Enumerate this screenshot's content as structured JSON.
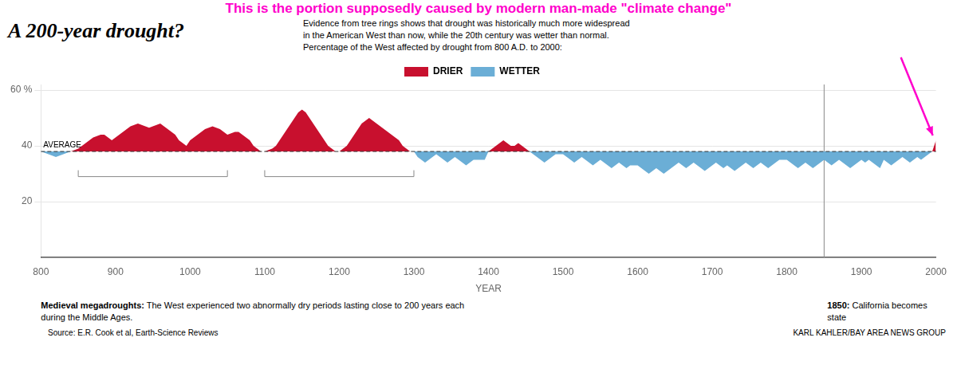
{
  "chart_data": {
    "type": "area",
    "title": "A 200-year drought?",
    "top_annotation": "This is the portion supposedly caused by modern man-made \"climate change\"",
    "top_annotation_color": "#FF00CC",
    "subtitle": [
      "Evidence from tree rings shows that drought was historically much more widespread",
      "in the American West than now, while the 20th century was wetter than normal.",
      "Percentage of the West affected by drought from 800 A.D. to 2000:"
    ],
    "x": [
      800,
      805,
      810,
      815,
      820,
      825,
      830,
      835,
      840,
      845,
      850,
      855,
      860,
      865,
      870,
      875,
      880,
      885,
      890,
      895,
      900,
      905,
      910,
      915,
      920,
      925,
      930,
      935,
      940,
      945,
      950,
      955,
      960,
      965,
      970,
      975,
      980,
      985,
      990,
      995,
      1000,
      1005,
      1010,
      1015,
      1020,
      1025,
      1030,
      1035,
      1040,
      1045,
      1050,
      1055,
      1060,
      1065,
      1070,
      1075,
      1080,
      1085,
      1090,
      1095,
      1100,
      1105,
      1110,
      1115,
      1120,
      1125,
      1130,
      1135,
      1140,
      1145,
      1150,
      1155,
      1160,
      1165,
      1170,
      1175,
      1180,
      1185,
      1190,
      1195,
      1200,
      1205,
      1210,
      1215,
      1220,
      1225,
      1230,
      1235,
      1240,
      1245,
      1250,
      1255,
      1260,
      1265,
      1270,
      1275,
      1280,
      1285,
      1290,
      1295,
      1300,
      1305,
      1310,
      1315,
      1320,
      1325,
      1330,
      1335,
      1340,
      1345,
      1350,
      1355,
      1360,
      1365,
      1370,
      1375,
      1380,
      1385,
      1390,
      1395,
      1400,
      1405,
      1410,
      1415,
      1420,
      1425,
      1430,
      1435,
      1440,
      1445,
      1450,
      1455,
      1460,
      1465,
      1470,
      1475,
      1480,
      1485,
      1490,
      1495,
      1500,
      1505,
      1510,
      1515,
      1520,
      1525,
      1530,
      1535,
      1540,
      1545,
      1550,
      1555,
      1560,
      1565,
      1570,
      1575,
      1580,
      1585,
      1590,
      1595,
      1600,
      1605,
      1610,
      1615,
      1620,
      1625,
      1630,
      1635,
      1640,
      1645,
      1650,
      1655,
      1660,
      1665,
      1670,
      1675,
      1680,
      1685,
      1690,
      1695,
      1700,
      1705,
      1710,
      1715,
      1720,
      1725,
      1730,
      1735,
      1740,
      1745,
      1750,
      1755,
      1760,
      1765,
      1770,
      1775,
      1780,
      1785,
      1790,
      1795,
      1800,
      1805,
      1810,
      1815,
      1820,
      1825,
      1830,
      1835,
      1840,
      1845,
      1850,
      1855,
      1860,
      1865,
      1870,
      1875,
      1880,
      1885,
      1890,
      1895,
      1900,
      1905,
      1910,
      1915,
      1920,
      1925,
      1930,
      1935,
      1940,
      1945,
      1950,
      1955,
      1960,
      1965,
      1970,
      1975,
      1980,
      1985,
      1990,
      1995,
      2000
    ],
    "values": [
      38,
      37.5,
      37,
      36.5,
      36,
      36.5,
      37,
      37.5,
      38,
      38.5,
      39,
      40,
      41,
      42,
      43,
      43.5,
      44,
      44,
      43,
      42,
      43,
      44,
      45,
      46,
      47,
      47.5,
      48,
      47.5,
      47,
      46.5,
      47,
      47.5,
      48,
      47,
      46,
      45,
      44,
      42,
      41,
      40,
      42,
      43,
      44,
      45,
      46,
      46.5,
      47,
      46.5,
      46,
      45,
      44,
      44.5,
      45,
      45,
      44,
      43,
      42,
      40,
      39,
      38,
      38,
      38.5,
      39,
      40,
      42,
      44,
      46,
      48,
      50,
      52,
      53,
      52,
      50,
      48,
      46,
      44,
      42,
      40,
      39,
      38,
      38,
      39,
      40,
      42,
      44,
      46,
      48,
      49,
      50,
      49,
      48,
      47,
      46,
      45,
      44,
      43,
      42,
      40,
      39,
      38,
      38,
      36,
      35,
      34,
      35,
      36,
      37,
      36,
      35,
      34,
      35,
      36,
      35,
      34,
      33,
      34,
      35,
      35,
      35,
      35,
      38,
      39,
      40,
      41,
      42,
      41,
      40,
      40,
      41,
      40,
      39,
      38,
      37,
      36,
      35,
      34,
      35,
      36,
      37,
      37,
      37,
      36,
      35,
      34,
      35,
      36,
      35,
      34,
      33,
      34,
      35,
      34,
      33,
      32,
      33,
      34,
      33,
      32,
      33,
      33,
      33,
      32,
      31,
      30,
      31,
      32,
      31,
      30,
      31,
      32,
      33,
      34,
      33,
      32,
      33,
      34,
      33,
      32,
      31,
      32,
      33,
      34,
      33,
      32,
      33,
      32,
      31,
      32,
      33,
      34,
      33,
      32,
      33,
      34,
      33,
      32,
      33,
      34,
      35,
      35,
      35,
      34,
      33,
      32,
      33,
      34,
      33,
      32,
      33,
      34,
      35,
      34,
      33,
      34,
      35,
      34,
      33,
      32,
      33,
      34,
      35,
      34,
      35,
      34,
      33,
      32,
      35,
      34,
      33,
      34,
      35,
      36,
      35,
      34,
      35,
      36,
      35,
      36,
      37,
      38,
      42
    ],
    "xlim": [
      800,
      2000
    ],
    "xticks": [
      800,
      900,
      1000,
      1100,
      1200,
      1300,
      1400,
      1500,
      1600,
      1700,
      1800,
      1900,
      2000
    ],
    "ylim": [
      0,
      62
    ],
    "yticks": [
      20,
      40,
      {
        "value": 60,
        "label": "60 %"
      }
    ],
    "xlabel": "YEAR",
    "grid": true,
    "average": 38,
    "average_label": "AVERAGE",
    "average_color": "#333333",
    "legend": "top",
    "fill": {
      "above": {
        "name": "DRIER",
        "color": "#C8102E"
      },
      "below": {
        "name": "WETTER",
        "color": "#6BAED6"
      }
    },
    "vline": 1850,
    "brackets": [
      {
        "x": [
          850,
          1050
        ],
        "y": 29
      },
      {
        "x": [
          1100,
          1300
        ],
        "y": 29
      }
    ],
    "annotations": [
      {
        "bold": "Medieval megadroughts:",
        "text": "The West experienced two abnormally dry periods lasting close to 200 years each during the Middle Ages."
      },
      {
        "bold": "1850:",
        "text": "California becomes state"
      }
    ],
    "source": "Source: E.R. Cook et al, Earth-Science Reviews",
    "credit": "KARL KAHLER/BAY AREA NEWS GROUP"
  }
}
